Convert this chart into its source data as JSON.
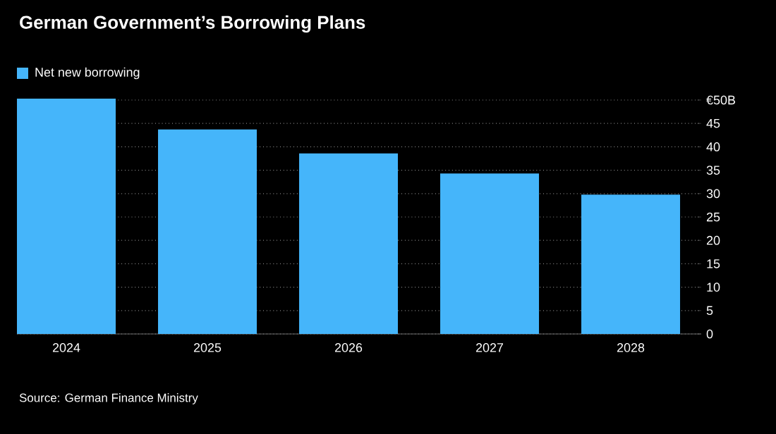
{
  "chart_data": {
    "type": "bar",
    "title": "German Government’s Borrowing Plans",
    "categories": [
      "2024",
      "2025",
      "2026",
      "2027",
      "2028"
    ],
    "series": [
      {
        "name": "Net new borrowing",
        "color": "#45b5fa",
        "values": [
          50.3,
          43.7,
          38.6,
          34.3,
          29.8
        ]
      }
    ],
    "ylim": [
      0,
      50.3
    ],
    "yticks": [
      0,
      5,
      10,
      15,
      20,
      25,
      30,
      35,
      40,
      45,
      {
        "value": 50,
        "label": "€50B"
      }
    ],
    "grid": "y",
    "legend": "top left",
    "annotations": [
      "Source: German Finance Ministry"
    ]
  }
}
